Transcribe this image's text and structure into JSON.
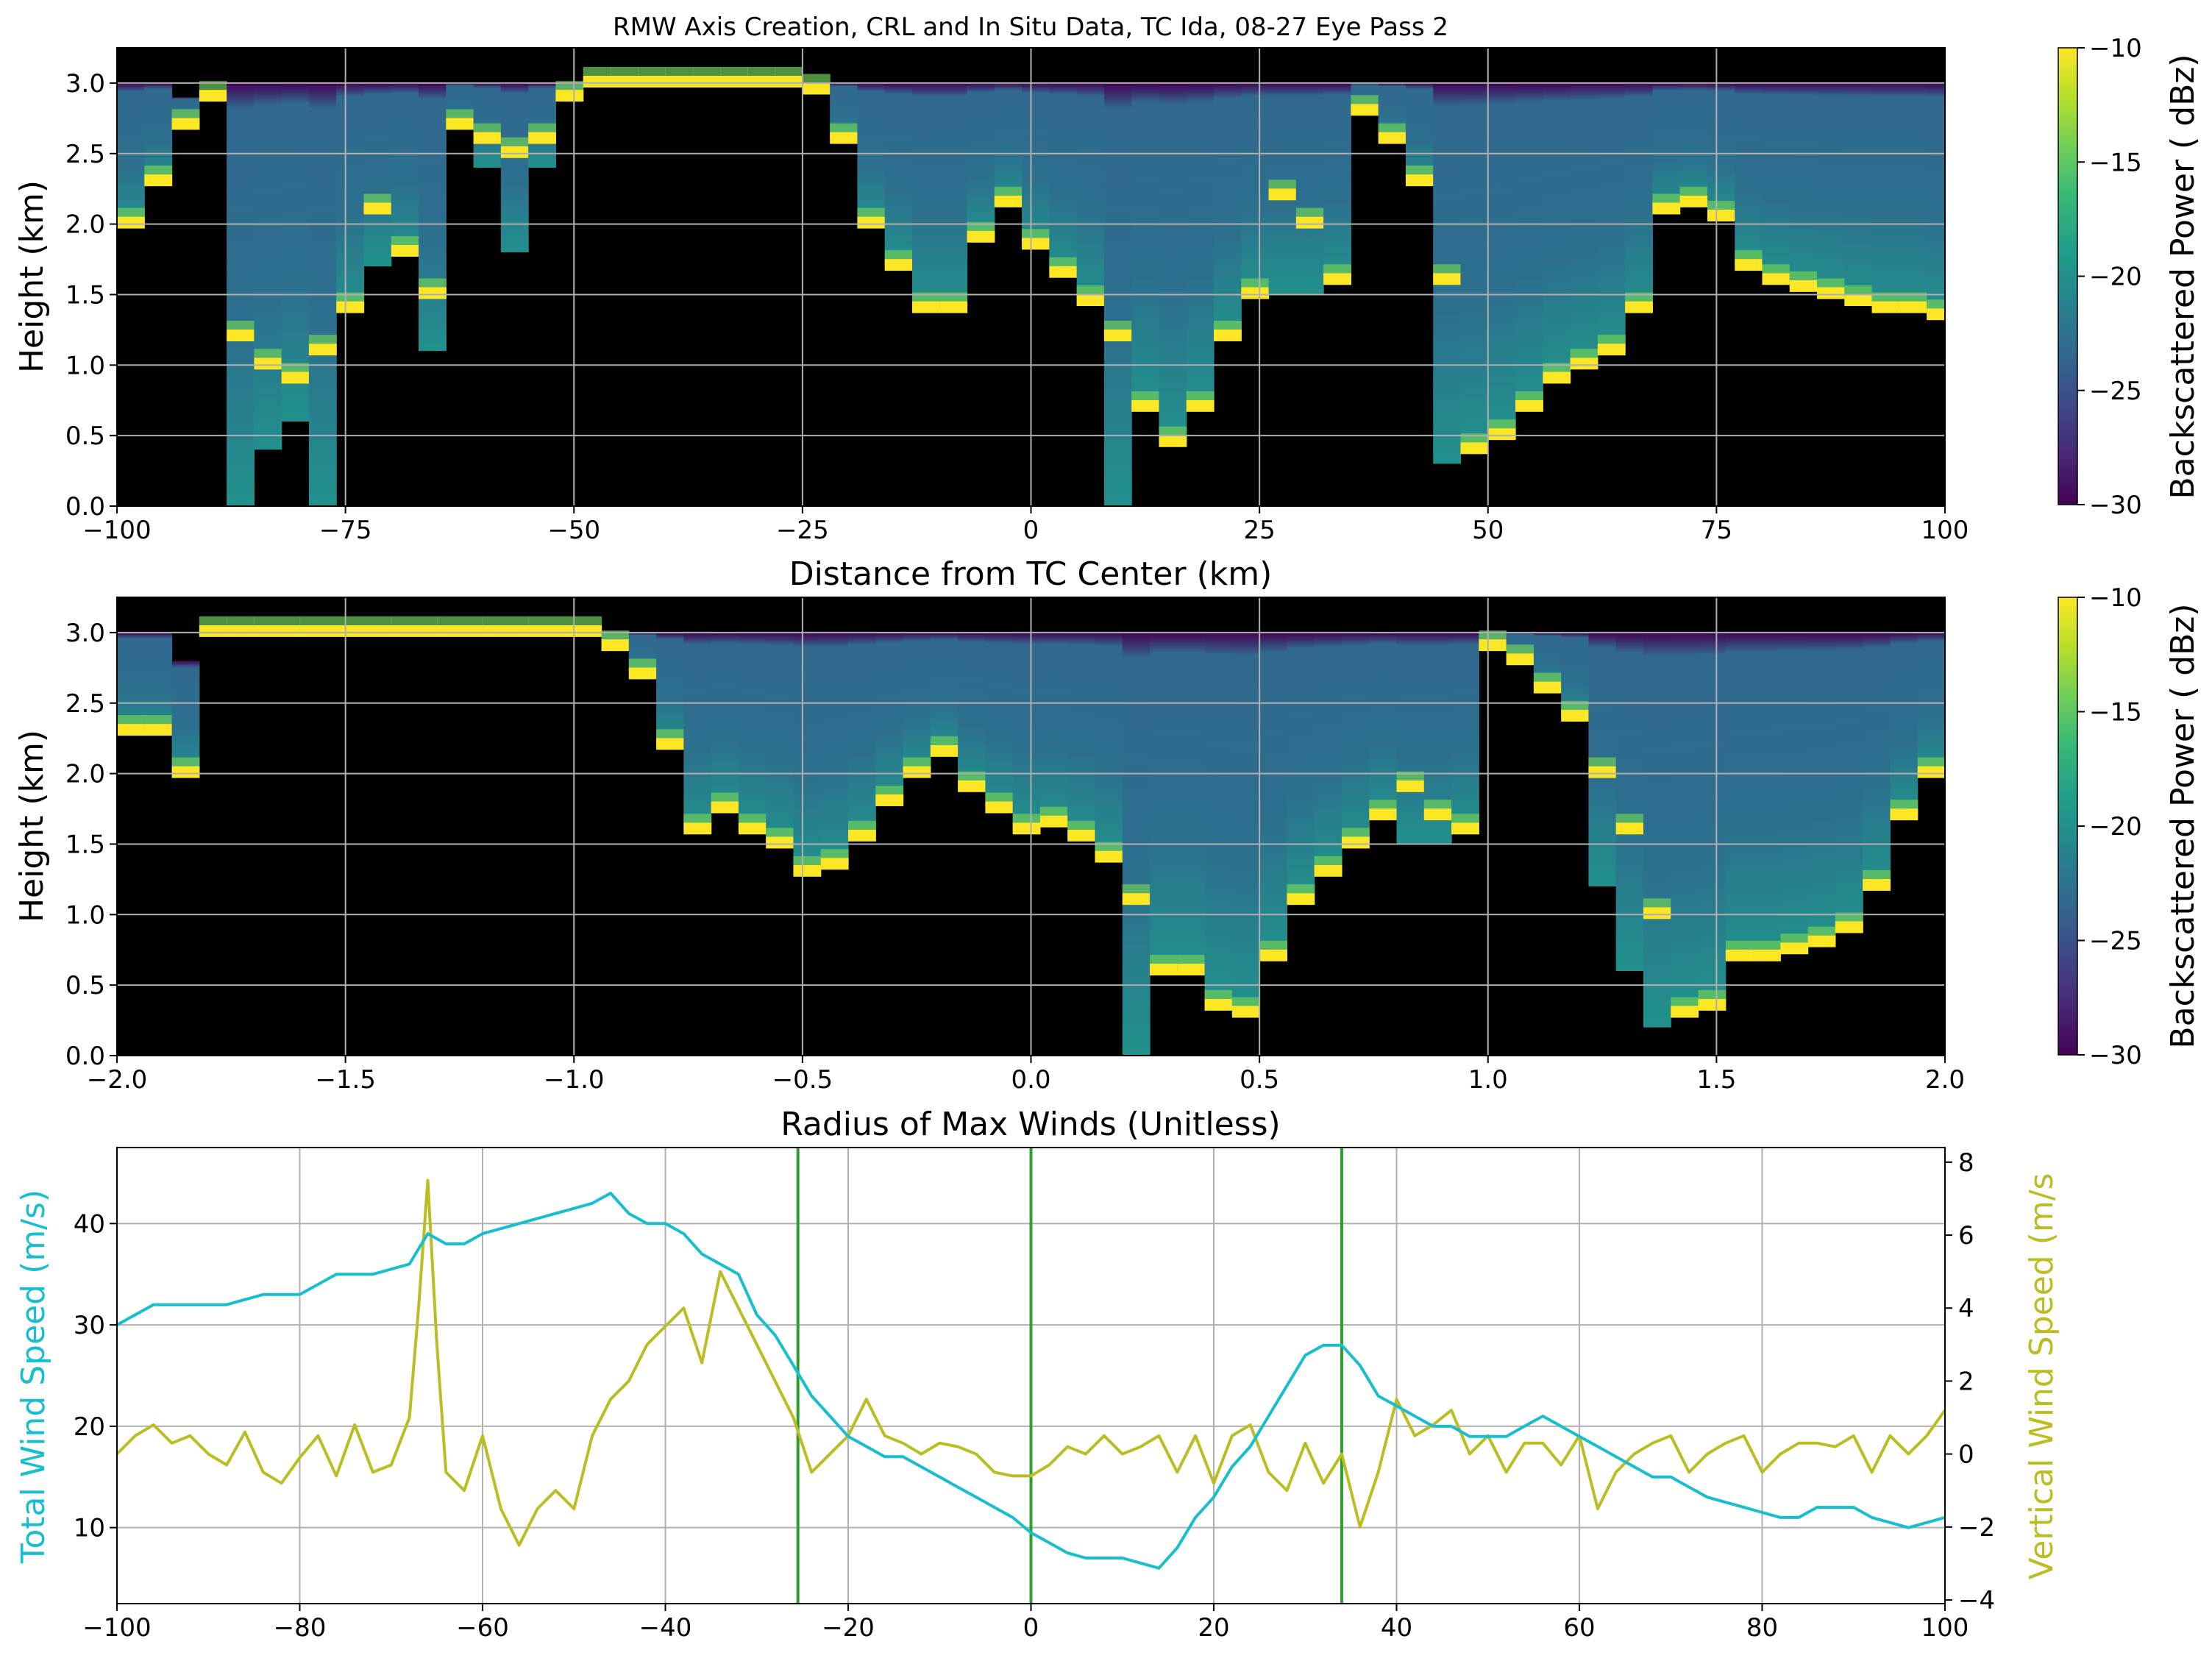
{
  "title": "RMW Axis Creation, CRL and In Situ Data, TC Ida, 08-27 Eye Pass 2",
  "colors": {
    "viridis": [
      "#440154",
      "#482878",
      "#3e4989",
      "#31688e",
      "#26828e",
      "#1f9e89",
      "#35b779",
      "#6ece58",
      "#b5de2b",
      "#fde725"
    ],
    "total_wind": "#17becf",
    "vertical_wind": "#bcbd22",
    "markers": "#2ca02c",
    "grid": "#b0b0b0",
    "background_no_return": "#000000"
  },
  "chart_data": [
    {
      "type": "heatmap",
      "xlabel": "Distance from TC Center (km)",
      "ylabel": "Height (km)",
      "xlim": [
        -100,
        100
      ],
      "ylim": [
        0,
        3.25
      ],
      "xticks": [
        "−100",
        "−75",
        "−50",
        "−25",
        "0",
        "25",
        "50",
        "75",
        "100"
      ],
      "yticks": [
        "0.0",
        "0.5",
        "1.0",
        "1.5",
        "2.0",
        "2.5",
        "3.0"
      ],
      "colorbar": {
        "label": "Backscattered Power ( dBz)",
        "range": [
          -30,
          -10
        ],
        "ticks": [
          "−30",
          "−25",
          "−20",
          "−15",
          "−10"
        ]
      },
      "x": [
        -100,
        -97,
        -94,
        -91,
        -88,
        -85,
        -82,
        -79,
        -76,
        -73,
        -70,
        -67,
        -64,
        -61,
        -58,
        -55,
        -52,
        -49,
        -46,
        -43,
        -40,
        -37,
        -34,
        -31,
        -28,
        -25,
        -22,
        -19,
        -16,
        -13,
        -10,
        -7,
        -4,
        -1,
        2,
        5,
        8,
        11,
        14,
        17,
        20,
        23,
        26,
        29,
        32,
        35,
        38,
        41,
        44,
        47,
        50,
        53,
        56,
        59,
        62,
        65,
        68,
        71,
        74,
        77,
        80,
        83,
        86,
        89,
        92,
        95,
        98
      ],
      "surface_height": [
        2.0,
        2.3,
        2.7,
        2.9,
        1.2,
        1.0,
        0.9,
        1.1,
        1.4,
        2.1,
        1.8,
        1.5,
        2.7,
        2.6,
        2.5,
        2.6,
        2.9,
        3.0,
        3.0,
        3.0,
        3.0,
        3.0,
        3.0,
        3.0,
        3.0,
        2.95,
        2.6,
        2.0,
        1.7,
        1.4,
        1.4,
        1.9,
        2.15,
        1.85,
        1.65,
        1.45,
        1.2,
        0.7,
        0.45,
        0.7,
        1.2,
        1.5,
        2.2,
        2.0,
        1.6,
        2.8,
        2.6,
        2.3,
        1.6,
        0.4,
        0.5,
        0.7,
        0.9,
        1.0,
        1.1,
        1.4,
        2.1,
        2.15,
        2.05,
        1.7,
        1.6,
        1.55,
        1.5,
        1.45,
        1.4,
        1.4,
        1.35
      ],
      "cloud_top": [
        3.0,
        3.0,
        2.9,
        2.9,
        3.0,
        3.0,
        3.0,
        3.0,
        3.0,
        3.0,
        3.0,
        3.0,
        3.0,
        3.0,
        3.0,
        3.0,
        3.0,
        3.0,
        3.0,
        3.0,
        3.0,
        3.0,
        3.0,
        3.0,
        3.0,
        3.0,
        3.0,
        3.0,
        3.0,
        3.0,
        3.0,
        3.0,
        3.0,
        3.0,
        3.0,
        3.0,
        3.0,
        3.0,
        3.0,
        3.0,
        3.0,
        3.0,
        3.0,
        3.0,
        3.0,
        3.0,
        3.0,
        3.0,
        3.0,
        3.0,
        3.0,
        3.0,
        3.0,
        3.0,
        3.0,
        3.0,
        3.0,
        3.0,
        3.0,
        3.0,
        3.0,
        3.0,
        3.0,
        3.0,
        3.0,
        3.0,
        3.0
      ],
      "echo_bottom": [
        2.0,
        2.3,
        2.7,
        2.9,
        0.0,
        0.4,
        0.6,
        0.0,
        1.4,
        1.7,
        1.8,
        1.1,
        2.7,
        2.4,
        1.8,
        2.4,
        2.9,
        3.0,
        3.0,
        3.0,
        3.0,
        3.0,
        3.0,
        3.0,
        3.0,
        2.95,
        2.6,
        2.0,
        1.7,
        1.4,
        1.4,
        1.9,
        2.15,
        1.85,
        1.65,
        1.45,
        0.0,
        0.7,
        0.45,
        0.7,
        1.2,
        1.5,
        1.5,
        1.5,
        1.6,
        2.8,
        2.6,
        2.3,
        0.3,
        0.4,
        0.5,
        0.7,
        0.9,
        1.0,
        1.1,
        1.4,
        2.1,
        2.15,
        2.05,
        1.7,
        1.6,
        1.55,
        1.5,
        1.45,
        1.4,
        1.4,
        1.35
      ]
    },
    {
      "type": "heatmap",
      "xlabel": "Radius of Max Winds (Unitless)",
      "ylabel": "Height (km)",
      "xlim": [
        -2.0,
        2.0
      ],
      "ylim": [
        0,
        3.25
      ],
      "xticks": [
        "−2.0",
        "−1.5",
        "−1.0",
        "−0.5",
        "0.0",
        "0.5",
        "1.0",
        "1.5",
        "2.0"
      ],
      "yticks": [
        "0.0",
        "0.5",
        "1.0",
        "1.5",
        "2.0",
        "2.5",
        "3.0"
      ],
      "colorbar": {
        "label": "Backscattered Power ( dBz)",
        "range": [
          -30,
          -10
        ],
        "ticks": [
          "−30",
          "−25",
          "−20",
          "−15",
          "−10"
        ]
      },
      "x": [
        -2.0,
        -1.94,
        -1.88,
        -1.82,
        -1.76,
        -1.7,
        -1.6,
        -1.5,
        -1.4,
        -1.3,
        -1.2,
        -1.1,
        -1.0,
        -0.94,
        -0.88,
        -0.82,
        -0.76,
        -0.7,
        -0.64,
        -0.58,
        -0.52,
        -0.46,
        -0.4,
        -0.34,
        -0.28,
        -0.22,
        -0.16,
        -0.1,
        -0.04,
        0.02,
        0.08,
        0.14,
        0.2,
        0.26,
        0.32,
        0.38,
        0.44,
        0.5,
        0.56,
        0.62,
        0.68,
        0.74,
        0.8,
        0.86,
        0.92,
        0.98,
        1.04,
        1.1,
        1.16,
        1.22,
        1.28,
        1.34,
        1.4,
        1.46,
        1.52,
        1.58,
        1.64,
        1.7,
        1.76,
        1.82,
        1.88,
        1.94,
        2.0
      ],
      "surface_height": [
        2.3,
        2.3,
        2.0,
        3.0,
        3.0,
        3.0,
        3.0,
        3.0,
        3.0,
        3.0,
        3.0,
        3.0,
        3.0,
        2.9,
        2.7,
        2.2,
        1.6,
        1.75,
        1.6,
        1.5,
        1.3,
        1.35,
        1.55,
        1.8,
        2.0,
        2.15,
        1.9,
        1.75,
        1.6,
        1.65,
        1.55,
        1.4,
        1.1,
        0.6,
        0.6,
        0.35,
        0.3,
        0.7,
        1.1,
        1.3,
        1.5,
        1.7,
        1.9,
        1.7,
        1.6,
        2.9,
        2.8,
        2.6,
        2.4,
        2.0,
        1.6,
        1.0,
        0.3,
        0.35,
        0.7,
        0.7,
        0.75,
        0.8,
        0.9,
        1.2,
        1.7,
        2.0,
        2.1
      ],
      "cloud_top": [
        3.0,
        3.0,
        2.8,
        3.0,
        3.0,
        3.0,
        3.0,
        3.0,
        3.0,
        3.0,
        3.0,
        3.0,
        3.0,
        3.0,
        3.0,
        3.0,
        3.0,
        3.0,
        3.0,
        3.0,
        3.0,
        3.0,
        3.0,
        3.0,
        3.0,
        3.0,
        3.0,
        3.0,
        3.0,
        3.0,
        3.0,
        3.0,
        3.0,
        3.0,
        3.0,
        3.0,
        3.0,
        3.0,
        3.0,
        3.0,
        3.0,
        3.0,
        3.0,
        3.0,
        3.0,
        3.0,
        3.0,
        3.0,
        3.0,
        3.0,
        3.0,
        3.0,
        3.0,
        3.0,
        3.0,
        3.0,
        3.0,
        3.0,
        3.0,
        3.0,
        3.0,
        3.0,
        3.0
      ],
      "echo_bottom": [
        2.3,
        2.3,
        2.0,
        3.0,
        3.0,
        3.0,
        3.0,
        3.0,
        3.0,
        3.0,
        3.0,
        3.0,
        3.0,
        2.9,
        2.7,
        2.2,
        1.6,
        1.75,
        1.6,
        1.5,
        1.3,
        1.35,
        1.55,
        1.8,
        2.0,
        2.15,
        1.9,
        1.75,
        1.6,
        1.65,
        1.55,
        1.4,
        0.0,
        0.6,
        0.6,
        0.35,
        0.3,
        0.7,
        1.1,
        1.3,
        1.5,
        1.7,
        1.5,
        1.5,
        1.6,
        2.9,
        2.8,
        2.6,
        2.4,
        1.2,
        0.6,
        0.2,
        0.3,
        0.35,
        0.7,
        0.7,
        0.75,
        0.8,
        0.9,
        1.2,
        1.7,
        2.0,
        2.1
      ]
    },
    {
      "type": "line",
      "xlabel": "",
      "ylabel": "Total Wind Speed (m/s)",
      "y2label": "Vertical Wind Speed (m/s",
      "xlim": [
        -100,
        100
      ],
      "ylim": [
        2.5,
        47.5
      ],
      "y2lim": [
        -4.1,
        8.4
      ],
      "xticks": [
        "−100",
        "−80",
        "−60",
        "−40",
        "−20",
        "0",
        "20",
        "40",
        "60",
        "80",
        "100"
      ],
      "yticks": [
        "10",
        "20",
        "30",
        "40"
      ],
      "y2ticks": [
        "−4",
        "−2",
        "0",
        "2",
        "4",
        "6",
        "8"
      ],
      "vertical_markers": [
        -25.5,
        0,
        34
      ],
      "series": [
        {
          "axis": "left",
          "x": [
            -100,
            -96,
            -92,
            -88,
            -84,
            -80,
            -76,
            -72,
            -68,
            -66,
            -64,
            -62,
            -60,
            -56,
            -52,
            -48,
            -46,
            -44,
            -42,
            -40,
            -38,
            -36,
            -34,
            -32,
            -30,
            -28,
            -26,
            -24,
            -22,
            -20,
            -18,
            -16,
            -14,
            -12,
            -10,
            -8,
            -6,
            -4,
            -2,
            0,
            2,
            4,
            6,
            8,
            10,
            12,
            14,
            16,
            18,
            20,
            22,
            24,
            26,
            28,
            30,
            32,
            34,
            36,
            38,
            40,
            42,
            44,
            46,
            48,
            50,
            52,
            54,
            56,
            58,
            60,
            62,
            64,
            66,
            68,
            70,
            72,
            74,
            76,
            78,
            80,
            82,
            84,
            86,
            88,
            90,
            92,
            94,
            96,
            98,
            100
          ],
          "values": [
            30,
            32,
            32,
            32,
            33,
            33,
            35,
            35,
            36,
            39,
            38,
            38,
            39,
            40,
            41,
            42,
            43,
            41,
            40,
            40,
            39,
            37,
            36,
            35,
            31,
            29,
            26,
            23,
            21,
            19,
            18,
            17,
            17,
            16,
            15,
            14,
            13,
            12,
            11,
            9.5,
            8.5,
            7.5,
            7,
            7,
            7,
            6.5,
            6,
            8,
            11,
            13,
            16,
            18,
            21,
            24,
            27,
            28,
            28,
            26,
            23,
            22,
            21,
            20,
            20,
            19,
            19,
            19,
            20,
            21,
            20,
            19,
            18,
            17,
            16,
            15,
            15,
            14,
            13,
            12.5,
            12,
            11.5,
            11,
            11,
            12,
            12,
            12,
            11,
            10.5,
            10,
            10.5,
            11
          ]
        },
        {
          "axis": "right",
          "x": [
            -100,
            -98,
            -96,
            -94,
            -92,
            -90,
            -88,
            -86,
            -84,
            -82,
            -80,
            -78,
            -76,
            -74,
            -72,
            -70,
            -68,
            -67,
            -66,
            -65,
            -64,
            -62,
            -60,
            -58,
            -56,
            -54,
            -52,
            -50,
            -48,
            -46,
            -44,
            -42,
            -40,
            -38,
            -36,
            -34,
            -32,
            -30,
            -28,
            -26,
            -24,
            -22,
            -20,
            -18,
            -16,
            -14,
            -12,
            -10,
            -8,
            -6,
            -4,
            -2,
            0,
            2,
            4,
            6,
            8,
            10,
            12,
            14,
            16,
            18,
            20,
            22,
            24,
            26,
            28,
            30,
            32,
            34,
            36,
            38,
            40,
            42,
            44,
            46,
            48,
            50,
            52,
            54,
            56,
            58,
            60,
            62,
            64,
            66,
            68,
            70,
            72,
            74,
            76,
            78,
            80,
            82,
            84,
            86,
            88,
            90,
            92,
            94,
            96,
            98,
            100
          ],
          "values": [
            0,
            0.5,
            0.8,
            0.3,
            0.5,
            0,
            -0.3,
            0.6,
            -0.5,
            -0.8,
            -0.1,
            0.5,
            -0.6,
            0.8,
            -0.5,
            -0.3,
            1.0,
            4.0,
            7.5,
            3.0,
            -0.5,
            -1.0,
            0.5,
            -1.5,
            -2.5,
            -1.5,
            -1.0,
            -1.5,
            0.5,
            1.5,
            2.0,
            3.0,
            3.5,
            4.0,
            2.5,
            5.0,
            4.0,
            3.0,
            2.0,
            1.0,
            -0.5,
            0.0,
            0.5,
            1.5,
            0.5,
            0.3,
            0.0,
            0.3,
            0.2,
            0.0,
            -0.5,
            -0.6,
            -0.6,
            -0.3,
            0.2,
            0.0,
            0.5,
            0.0,
            0.2,
            0.5,
            -0.5,
            0.5,
            -0.8,
            0.5,
            0.8,
            -0.5,
            -1.0,
            0.3,
            -0.8,
            0.0,
            -2.0,
            -0.5,
            1.5,
            0.5,
            0.8,
            1.2,
            0.0,
            0.5,
            -0.5,
            0.3,
            0.3,
            -0.3,
            0.5,
            -1.5,
            -0.5,
            0.0,
            0.3,
            0.5,
            -0.5,
            0.0,
            0.3,
            0.5,
            -0.5,
            0.0,
            0.3,
            0.3,
            0.2,
            0.5,
            -0.5,
            0.5,
            0.0,
            0.5,
            1.2
          ]
        }
      ]
    }
  ]
}
